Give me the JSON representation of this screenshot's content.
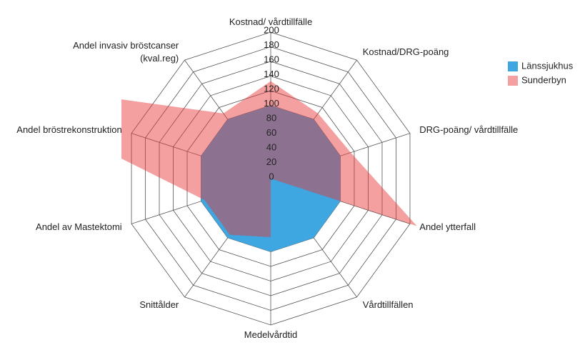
{
  "chart_data": {
    "type": "radar",
    "categories": [
      "Kostnad/ vårdtillfälle",
      "Kostnad/DRG-poäng",
      "DRG-poäng/ vårdtillfälle",
      "Andel ytterfall",
      "Vårdtillfällen",
      "Medelvårdtid",
      "Snittålder",
      "Andel av Mastektomi",
      "Andel bröstrekonstruktion",
      "Andel invasiv bröstcanser\n(kval.reg)"
    ],
    "series": [
      {
        "name": "Länssjukhus",
        "color": "#3ea6e0",
        "values": [
          100,
          100,
          100,
          100,
          100,
          100,
          100,
          100,
          100,
          100
        ]
      },
      {
        "name": "Sunderbyn",
        "color": "#e83535",
        "values": [
          133,
          110,
          115,
          210,
          0,
          80,
          95,
          95,
          450,
          110
        ]
      }
    ],
    "ylim": [
      0,
      200
    ],
    "yticks": [
      0,
      20,
      40,
      60,
      80,
      100,
      120,
      140,
      160,
      180,
      200
    ],
    "legend": "right"
  }
}
